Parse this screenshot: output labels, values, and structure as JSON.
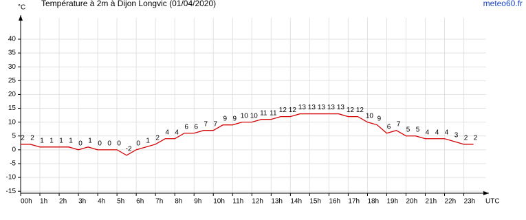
{
  "chart_data": {
    "type": "line",
    "title": "Température à 2m à Dijon Longvic (01/04/2020)",
    "source": "meteo60.fr",
    "ylabel": "°C",
    "xlabel": "UTC",
    "x": [
      0,
      0.5,
      1,
      1.5,
      2,
      2.5,
      3,
      3.5,
      4,
      4.5,
      5,
      5.5,
      6,
      6.5,
      7,
      7.5,
      8,
      8.5,
      9,
      9.5,
      10,
      10.5,
      11,
      11.5,
      12,
      12.5,
      13,
      13.5,
      14,
      14.5,
      15,
      15.5,
      16,
      16.5,
      17,
      17.5,
      18,
      18.5,
      19,
      19.5,
      20,
      20.5,
      21,
      21.5,
      22,
      22.5,
      23,
      23.5
    ],
    "series": [
      {
        "name": "Température",
        "color": "#d40000",
        "values": [
          2,
          2,
          1,
          1,
          1,
          1,
          0,
          1,
          0,
          0,
          0,
          -2,
          0,
          1,
          2,
          4,
          4,
          6,
          6,
          7,
          7,
          9,
          9,
          10,
          10,
          11,
          11,
          12,
          12,
          13,
          13,
          13,
          13,
          13,
          12,
          12,
          10,
          9,
          6,
          7,
          5,
          5,
          4,
          4,
          4,
          3,
          2,
          2
        ]
      }
    ],
    "xlim": [
      0,
      24.3
    ],
    "xticks": [
      {
        "value": 0,
        "label": "00h"
      },
      {
        "value": 1,
        "label": "1h"
      },
      {
        "value": 2,
        "label": "2h"
      },
      {
        "value": 3,
        "label": "3h"
      },
      {
        "value": 4,
        "label": "4h"
      },
      {
        "value": 5,
        "label": "5h"
      },
      {
        "value": 6,
        "label": "6h"
      },
      {
        "value": 7,
        "label": "7h"
      },
      {
        "value": 8,
        "label": "8h"
      },
      {
        "value": 9,
        "label": "9h"
      },
      {
        "value": 10,
        "label": "10h"
      },
      {
        "value": 11,
        "label": "11h"
      },
      {
        "value": 12,
        "label": "12h"
      },
      {
        "value": 13,
        "label": "13h"
      },
      {
        "value": 14,
        "label": "14h"
      },
      {
        "value": 15,
        "label": "15h"
      },
      {
        "value": 16,
        "label": "16h"
      },
      {
        "value": 17,
        "label": "17h"
      },
      {
        "value": 18,
        "label": "18h"
      },
      {
        "value": 19,
        "label": "19h"
      },
      {
        "value": 20,
        "label": "20h"
      },
      {
        "value": 21,
        "label": "21h"
      },
      {
        "value": 22,
        "label": "22h"
      },
      {
        "value": 23,
        "label": "23h"
      }
    ],
    "ylim": [
      -15.7,
      48.7
    ],
    "yticks": [
      -15,
      -10,
      -5,
      0,
      5,
      10,
      15,
      20,
      25,
      30,
      35,
      40
    ],
    "grid": true
  }
}
